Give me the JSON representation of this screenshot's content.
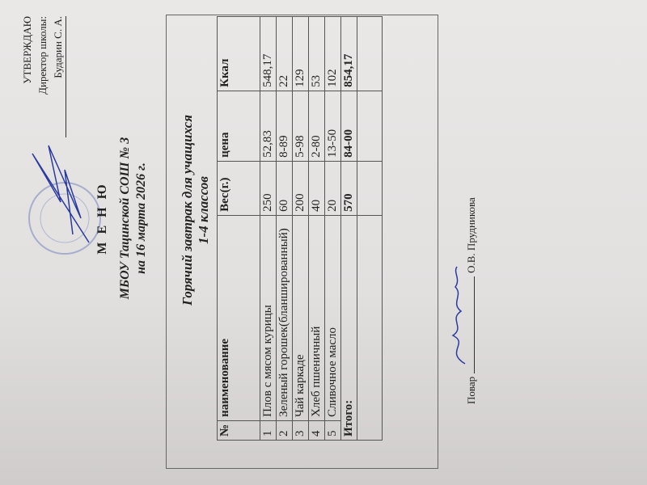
{
  "approval": {
    "title": "УТВЕРЖДАЮ",
    "position": "Директор школы:",
    "name": "Бударин С. А."
  },
  "header": {
    "menu": "М Е Н Ю",
    "school": "МБОУ Тацинской СОШ № 3",
    "date": "на 16 марта 2026 г."
  },
  "meal": {
    "title": "Горячий завтрак для учащихся",
    "subtitle": "1-4 классов"
  },
  "table": {
    "columns": [
      "№",
      "наименование",
      "Вес(г.)",
      "цена",
      "Ккал"
    ],
    "rows": [
      {
        "n": "1",
        "name": "Плов с мясом курицы",
        "weight": "250",
        "price": "52,83",
        "kcal": "548,17"
      },
      {
        "n": "2",
        "name": "Зеленый горошек(бланшированный)",
        "weight": "60",
        "price": "8-89",
        "kcal": "22"
      },
      {
        "n": "3",
        "name": "Чай каркаде",
        "weight": "200",
        "price": "5-98",
        "kcal": "129"
      },
      {
        "n": "4",
        "name": "Хлеб пшеничный",
        "weight": "40",
        "price": "2-80",
        "kcal": "53"
      },
      {
        "n": "5",
        "name": "Сливочное масло",
        "weight": "20",
        "price": "13-50",
        "kcal": "102"
      }
    ],
    "total": {
      "label": "Итого:",
      "weight": "570",
      "price": "84-00",
      "kcal": "854,17"
    }
  },
  "cook": {
    "label": "Повар",
    "name": "О.В. Прудникова"
  }
}
